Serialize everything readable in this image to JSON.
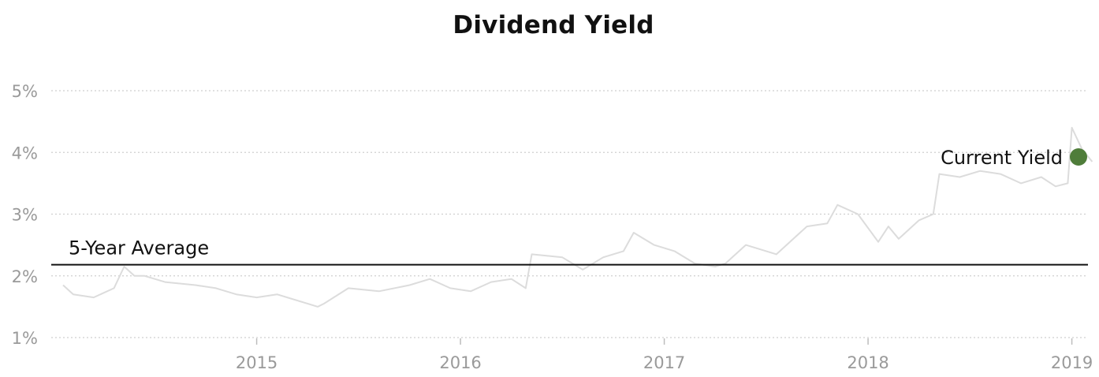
{
  "chart_data": {
    "type": "line",
    "title": "Dividend Yield",
    "xlabel": "",
    "ylabel": "",
    "x_ticks": [
      "2015",
      "2016",
      "2017",
      "2018",
      "2019"
    ],
    "y_ticks": [
      "1%",
      "2%",
      "3%",
      "4%",
      "5%"
    ],
    "xlim": [
      2014.05,
      2019.13
    ],
    "ylim": [
      1,
      5
    ],
    "grid": "horizontal dotted",
    "series": [
      {
        "color": "#dcdcdc",
        "x": [
          2014.05,
          2014.1,
          2014.2,
          2014.3,
          2014.35,
          2014.4,
          2014.45,
          2014.55,
          2014.7,
          2014.8,
          2014.9,
          2015.0,
          2015.1,
          2015.2,
          2015.3,
          2015.33,
          2015.45,
          2015.6,
          2015.75,
          2015.85,
          2015.95,
          2016.05,
          2016.15,
          2016.25,
          2016.32,
          2016.35,
          2016.5,
          2016.55,
          2016.6,
          2016.7,
          2016.8,
          2016.85,
          2016.95,
          2017.05,
          2017.15,
          2017.25,
          2017.3,
          2017.4,
          2017.5,
          2017.55,
          2017.6,
          2017.7,
          2017.8,
          2017.85,
          2017.95,
          2018.05,
          2018.1,
          2018.15,
          2018.25,
          2018.32,
          2018.35,
          2018.45,
          2018.55,
          2018.65,
          2018.75,
          2018.85,
          2018.92,
          2018.98,
          2019.0,
          2019.05,
          2019.1
        ],
        "y": [
          1.85,
          1.7,
          1.65,
          1.8,
          2.15,
          2.0,
          2.0,
          1.9,
          1.85,
          1.8,
          1.7,
          1.65,
          1.7,
          1.6,
          1.5,
          1.55,
          1.8,
          1.75,
          1.85,
          1.95,
          1.8,
          1.75,
          1.9,
          1.95,
          1.8,
          2.35,
          2.3,
          2.2,
          2.1,
          2.3,
          2.4,
          2.7,
          2.5,
          2.4,
          2.2,
          2.15,
          2.2,
          2.5,
          2.4,
          2.35,
          2.5,
          2.8,
          2.85,
          3.15,
          3.0,
          2.55,
          2.8,
          2.6,
          2.9,
          3.0,
          3.65,
          3.6,
          3.7,
          3.65,
          3.5,
          3.6,
          3.45,
          3.5,
          4.4,
          4.05,
          3.85
        ]
      }
    ],
    "reference_line": {
      "label": "5-Year Average",
      "value": 2.18,
      "color": "#111111"
    },
    "current_point": {
      "label": "Current Yield",
      "x": 2019.1,
      "y": 3.85,
      "color": "#4f7d3a"
    }
  }
}
